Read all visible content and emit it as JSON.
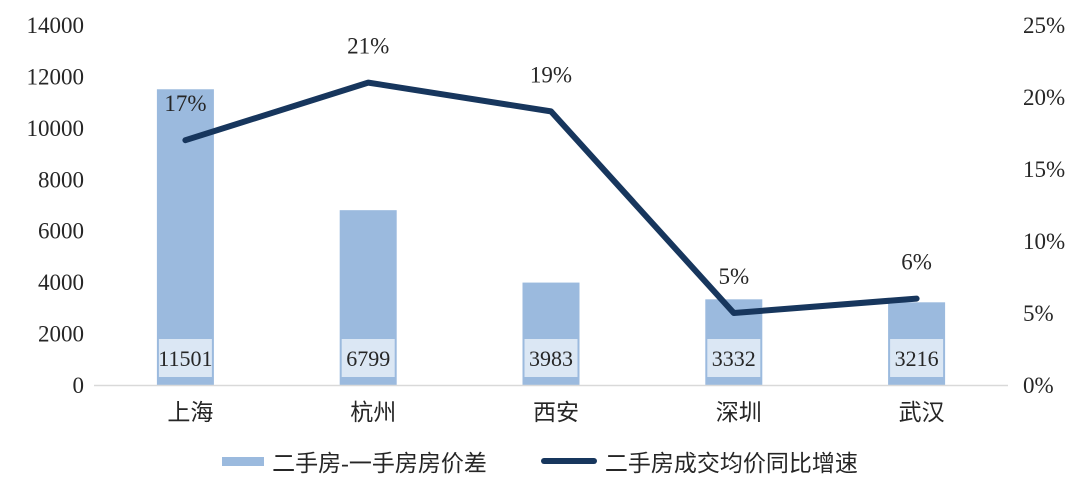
{
  "chart_data": {
    "type": "combo",
    "title": "",
    "categories": [
      "上海",
      "杭州",
      "西安",
      "深圳",
      "武汉"
    ],
    "series": [
      {
        "name": "二手房-一手房房价差",
        "type": "bar",
        "axis": "left",
        "values": [
          11501,
          6799,
          3983,
          3332,
          3216
        ],
        "data_labels": [
          "11501",
          "6799",
          "3983",
          "3332",
          "3216"
        ],
        "color": "#9bbade",
        "data_label_bg": "#dbe7f4"
      },
      {
        "name": "二手房成交均价同比增速",
        "type": "line",
        "axis": "right",
        "values": [
          17,
          21,
          19,
          5,
          6
        ],
        "data_labels": [
          "17%",
          "21%",
          "19%",
          "5%",
          "6%"
        ],
        "color": "#17365d"
      }
    ],
    "left_axis": {
      "min": 0,
      "max": 14000,
      "ticks": [
        {
          "value": 14000,
          "label": "14000"
        },
        {
          "value": 12000,
          "label": "12000"
        },
        {
          "value": 10000,
          "label": "10000"
        },
        {
          "value": 8000,
          "label": "8000"
        },
        {
          "value": 6000,
          "label": "6000"
        },
        {
          "value": 4000,
          "label": "4000"
        },
        {
          "value": 2000,
          "label": "2000"
        },
        {
          "value": 0,
          "label": "0"
        }
      ]
    },
    "right_axis": {
      "min": 0,
      "max": 25,
      "ticks": [
        {
          "value": 25,
          "label": "25%"
        },
        {
          "value": 20,
          "label": "20%"
        },
        {
          "value": 15,
          "label": "15%"
        },
        {
          "value": 10,
          "label": "10%"
        },
        {
          "value": 5,
          "label": "5%"
        },
        {
          "value": 0,
          "label": "0%"
        }
      ]
    },
    "grid": false,
    "legend_position": "bottom",
    "axis_line_color": "#d9d9d9",
    "text_color": "#262626",
    "background": "#ffffff"
  }
}
